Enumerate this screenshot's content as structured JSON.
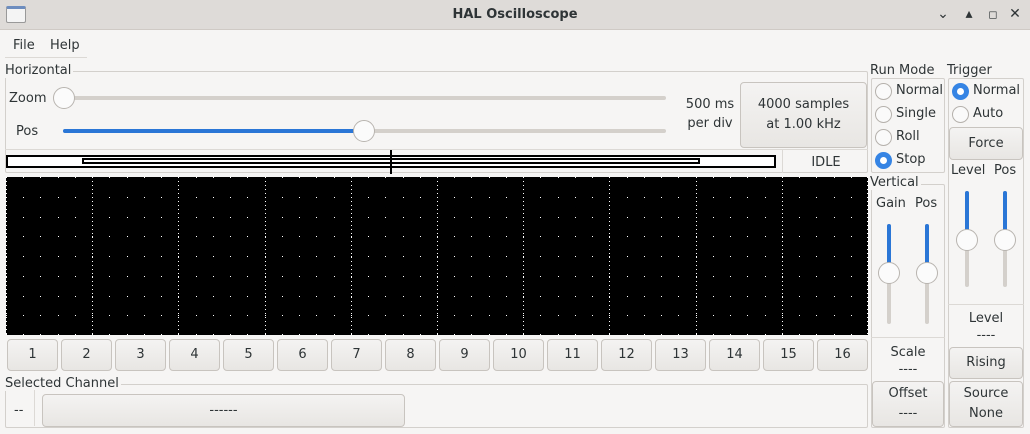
{
  "window": {
    "title": "HAL Oscilloscope"
  },
  "menu": [
    "File",
    "Help"
  ],
  "horizontal": {
    "label": "Horizontal",
    "zoom_label": "Zoom",
    "pos_label": "Pos",
    "zoom_value": 0,
    "pos_value": 0.5,
    "timebase_line1": "500 ms",
    "timebase_line2": "per div",
    "samples_line1": "4000 samples",
    "samples_line2": "at 1.00 kHz",
    "status": "IDLE"
  },
  "run_mode": {
    "label": "Run Mode",
    "options": [
      "Normal",
      "Single",
      "Roll",
      "Stop"
    ],
    "selected": "Stop"
  },
  "trigger": {
    "label": "Trigger",
    "options": [
      "Normal",
      "Auto"
    ],
    "selected": "Normal",
    "force": "Force",
    "level_label": "Level",
    "pos_label": "Pos",
    "level_readout_label": "Level",
    "level_readout": "----",
    "edge": "Rising",
    "source_line1": "Source",
    "source_line2": "None"
  },
  "vertical": {
    "label": "Vertical",
    "gain_label": "Gain",
    "pos_label": "Pos",
    "scale_label": "Scale",
    "scale_value": "----",
    "offset_label": "Offset",
    "offset_value": "----"
  },
  "channels": [
    "1",
    "2",
    "3",
    "4",
    "5",
    "6",
    "7",
    "8",
    "9",
    "10",
    "11",
    "12",
    "13",
    "14",
    "15",
    "16"
  ],
  "selected_channel": {
    "label": "Selected Channel",
    "number": "--",
    "name": "------"
  },
  "colors": {
    "accent": "#3584e4",
    "scope_bg": "#000000",
    "grid": "#ffffff"
  }
}
